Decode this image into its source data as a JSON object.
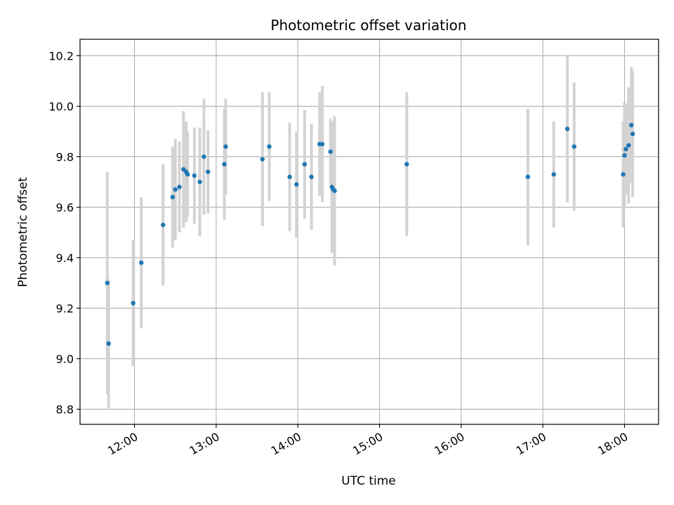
{
  "chart_data": {
    "type": "scatter",
    "title": "Photometric offset variation",
    "xlabel": "UTC time",
    "ylabel": "Photometric offset",
    "x_tick_labels": [
      "12:00",
      "13:00",
      "14:00",
      "15:00",
      "16:00",
      "17:00",
      "18:00"
    ],
    "y_tick_labels": [
      "8.8",
      "9.0",
      "9.2",
      "9.4",
      "9.6",
      "9.8",
      "10.0",
      "10.2"
    ],
    "xlim": [
      "11:20",
      "18:25"
    ],
    "ylim": [
      8.74,
      10.265
    ],
    "grid": true,
    "colors": {
      "point": "#1f77b4",
      "errorbar": "#d3d3d3"
    },
    "points": [
      {
        "x": "11:40",
        "y": 9.3,
        "err": 0.44
      },
      {
        "x": "11:41",
        "y": 9.06,
        "err": 0.255
      },
      {
        "x": "11:59",
        "y": 9.22,
        "err": 0.25
      },
      {
        "x": "12:05",
        "y": 9.38,
        "err": 0.26
      },
      {
        "x": "12:21",
        "y": 9.53,
        "err": 0.24
      },
      {
        "x": "12:28",
        "y": 9.64,
        "err": 0.2
      },
      {
        "x": "12:30",
        "y": 9.67,
        "err": 0.2
      },
      {
        "x": "12:33",
        "y": 9.68,
        "err": 0.18
      },
      {
        "x": "12:36",
        "y": 9.75,
        "err": 0.23
      },
      {
        "x": "12:38",
        "y": 9.74,
        "err": 0.2
      },
      {
        "x": "12:39",
        "y": 9.73,
        "err": 0.17
      },
      {
        "x": "12:44",
        "y": 9.725,
        "err": 0.19
      },
      {
        "x": "12:48",
        "y": 9.7,
        "err": 0.215
      },
      {
        "x": "12:51",
        "y": 9.8,
        "err": 0.23
      },
      {
        "x": "12:54",
        "y": 9.74,
        "err": 0.165
      },
      {
        "x": "13:06",
        "y": 9.77,
        "err": 0.22
      },
      {
        "x": "13:07",
        "y": 9.84,
        "err": 0.19
      },
      {
        "x": "13:34",
        "y": 9.79,
        "err": 0.265
      },
      {
        "x": "13:39",
        "y": 9.84,
        "err": 0.215
      },
      {
        "x": "13:54",
        "y": 9.72,
        "err": 0.215
      },
      {
        "x": "13:59",
        "y": 9.69,
        "err": 0.21
      },
      {
        "x": "14:05",
        "y": 9.77,
        "err": 0.215
      },
      {
        "x": "14:10",
        "y": 9.72,
        "err": 0.21
      },
      {
        "x": "14:16",
        "y": 9.85,
        "err": 0.205
      },
      {
        "x": "14:18",
        "y": 9.85,
        "err": 0.23
      },
      {
        "x": "14:24",
        "y": 9.82,
        "err": 0.13
      },
      {
        "x": "14:25",
        "y": 9.68,
        "err": 0.26
      },
      {
        "x": "14:26",
        "y": 9.67,
        "err": 0.25
      },
      {
        "x": "14:27",
        "y": 9.665,
        "err": 0.295
      },
      {
        "x": "15:20",
        "y": 9.77,
        "err": 0.285
      },
      {
        "x": "16:49",
        "y": 9.72,
        "err": 0.27
      },
      {
        "x": "17:08",
        "y": 9.73,
        "err": 0.21
      },
      {
        "x": "17:18",
        "y": 9.91,
        "err": 0.29
      },
      {
        "x": "17:23",
        "y": 9.84,
        "err": 0.255
      },
      {
        "x": "17:59",
        "y": 9.73,
        "err": 0.21
      },
      {
        "x": "18:00",
        "y": 9.805,
        "err": 0.21
      },
      {
        "x": "18:01",
        "y": 9.83,
        "err": 0.18
      },
      {
        "x": "18:03",
        "y": 9.845,
        "err": 0.23
      },
      {
        "x": "18:05",
        "y": 9.925,
        "err": 0.23
      },
      {
        "x": "18:06",
        "y": 9.89,
        "err": 0.25
      }
    ]
  }
}
